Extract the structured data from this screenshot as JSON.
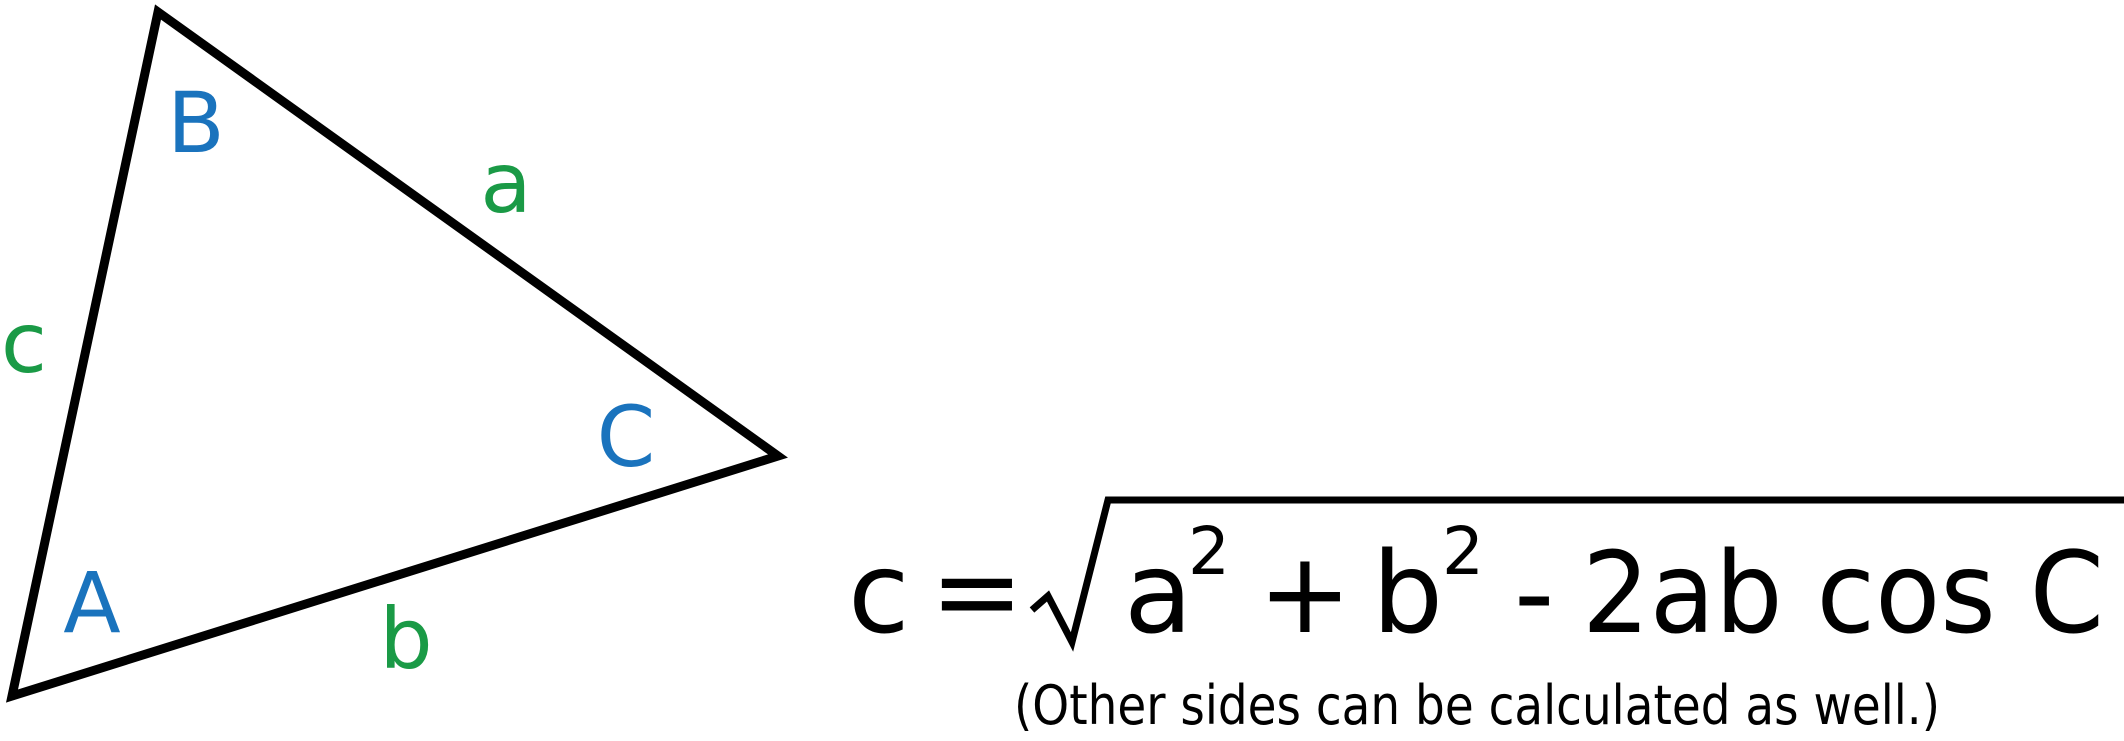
{
  "colors": {
    "angle_label": "#1a73bd",
    "side_label": "#1a9a46",
    "line": "#000000",
    "text": "#000000"
  },
  "triangle": {
    "vertices": {
      "A": "A",
      "B": "B",
      "C": "C"
    },
    "sides": {
      "a": "a",
      "b": "b",
      "c": "c"
    }
  },
  "formula": {
    "lhs": "c",
    "equals": "=",
    "term_a": "a",
    "exp_a": "2",
    "plus": "+",
    "term_b": "b",
    "exp_b": "2",
    "minus": "-",
    "term_rest": "2ab cos C"
  },
  "note": "(Other sides can be calculated as well.)"
}
